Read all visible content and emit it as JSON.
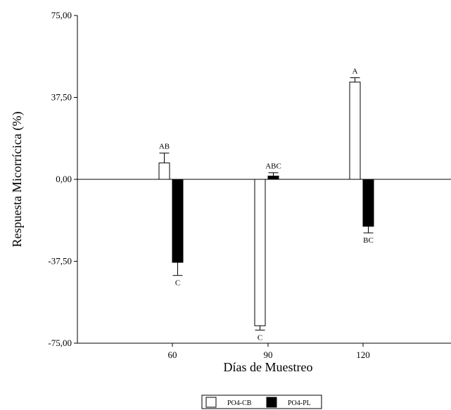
{
  "chart_data": {
    "type": "bar",
    "categories": [
      "60",
      "90",
      "120"
    ],
    "series": [
      {
        "name": "PO4-CB",
        "values": [
          7.5,
          -67.0,
          44.5
        ],
        "errors": [
          4.5,
          2.0,
          2.0
        ],
        "labels": [
          "AB",
          "C",
          "A"
        ],
        "color": "#ffffff"
      },
      {
        "name": "PO4-PL",
        "values": [
          -38.0,
          1.5,
          -21.5
        ],
        "errors": [
          6.0,
          1.5,
          3.0
        ],
        "labels": [
          "C",
          "ABC",
          "BC"
        ],
        "color": "#000000"
      }
    ],
    "xlabel": "Días de Muestreo",
    "ylabel": "Respuesta Micorrícica (%)",
    "yticks": [
      "75,00",
      "37,50",
      "0,00",
      "-37,50",
      "-75,00"
    ],
    "ytick_values": [
      75,
      37.5,
      0,
      -37.5,
      -75
    ],
    "ylim": [
      -75,
      75
    ],
    "grid": false,
    "legend_position": "bottom-center"
  }
}
